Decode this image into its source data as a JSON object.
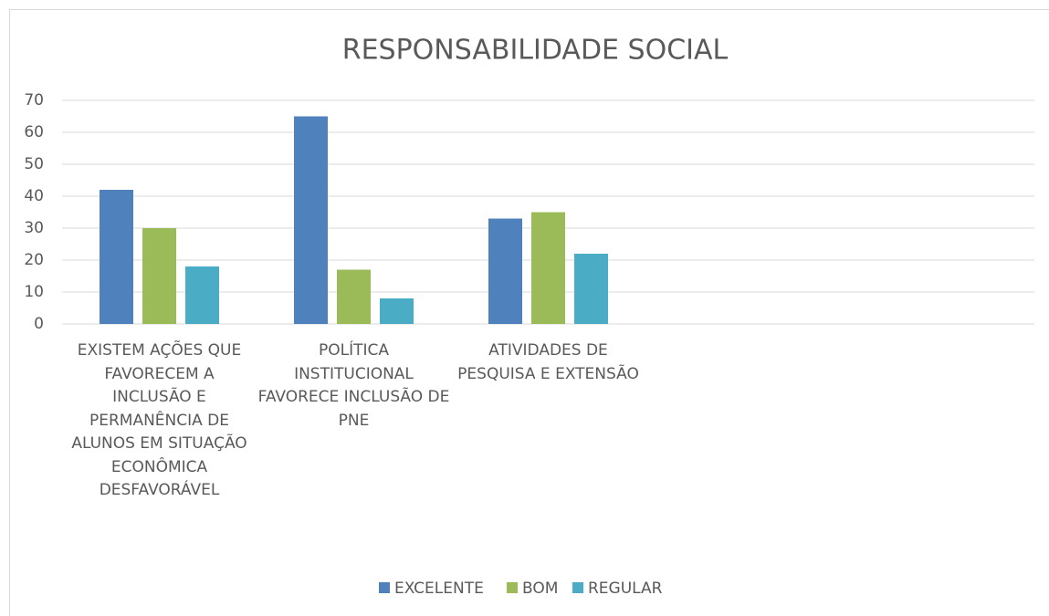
{
  "chart_data": {
    "type": "bar",
    "title": "RESPONSABILIDADE SOCIAL",
    "categories": [
      "EXISTEM AÇÕES QUE FAVORECEM A INCLUSÃO E PERMANÊNCIA DE ALUNOS EM SITUAÇÃO ECONÔMICA DESFAVORÁVEL",
      "POLÍTICA INSTITUCIONAL FAVORECE INCLUSÃO DE PNE",
      "ATIVIDADES DE PESQUISA E EXTENSÃO",
      null,
      null
    ],
    "series": [
      {
        "name": "EXCELENTE",
        "color": "#4f81bd",
        "values": [
          42,
          65,
          33,
          null,
          null
        ]
      },
      {
        "name": "BOM",
        "color": "#9bbb59",
        "values": [
          30,
          17,
          35,
          null,
          null
        ]
      },
      {
        "name": "REGULAR",
        "color": "#4bacc6",
        "values": [
          18,
          8,
          22,
          null,
          null
        ]
      }
    ],
    "ylim": [
      0,
      70
    ],
    "yticks": [
      0,
      10,
      20,
      30,
      40,
      50,
      60,
      70
    ],
    "grid": true,
    "legend": "bottom"
  }
}
